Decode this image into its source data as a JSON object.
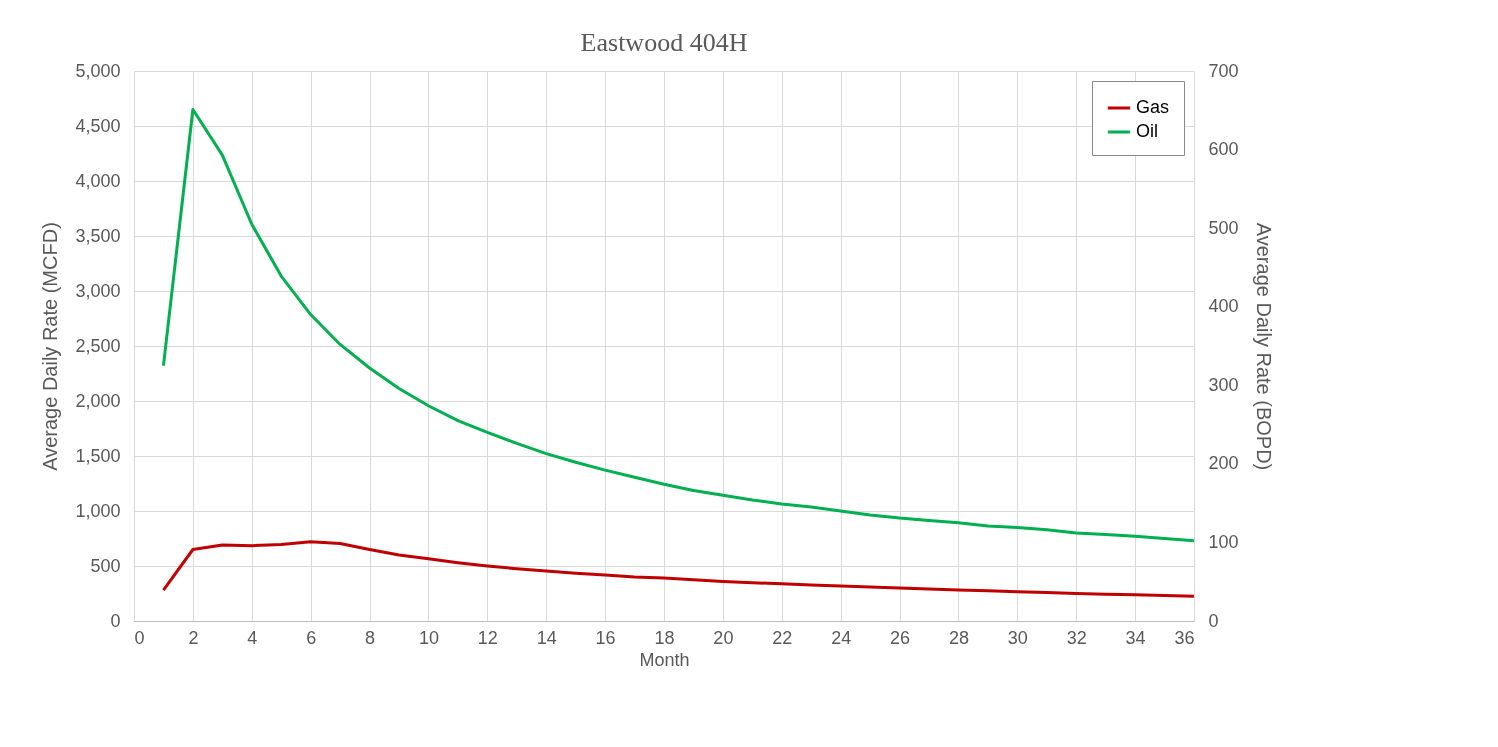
{
  "chart_data": {
    "type": "line",
    "title": "Eastwood 404H",
    "xlabel": "Month",
    "ylabel": "Average Daily Rate (MCFD)",
    "y2label": "Average Daily Rate (BOPD)",
    "x": [
      1,
      2,
      3,
      4,
      5,
      6,
      7,
      8,
      9,
      10,
      11,
      12,
      13,
      14,
      15,
      16,
      17,
      18,
      19,
      20,
      21,
      22,
      23,
      24,
      25,
      26,
      27,
      28,
      29,
      30,
      31,
      32,
      33,
      34,
      35,
      36
    ],
    "series": [
      {
        "name": "Gas",
        "color": "#c00000",
        "values": [
          280,
          650,
          690,
          685,
          695,
          720,
          705,
          650,
          600,
          565,
          530,
          500,
          475,
          455,
          435,
          418,
          400,
          390,
          375,
          360,
          348,
          338,
          328,
          318,
          308,
          300,
          290,
          282,
          274,
          266,
          258,
          250,
          244,
          238,
          232,
          225
        ]
      },
      {
        "name": "Oil",
        "color": "#00b050",
        "axis": "y2",
        "values": [
          325,
          651,
          593,
          505,
          439,
          390,
          352,
          322,
          296,
          274,
          255,
          240,
          226,
          213,
          202,
          192,
          183,
          174,
          166,
          160,
          154,
          149,
          145,
          140,
          135,
          131,
          128,
          125,
          121,
          119,
          116,
          112,
          110,
          108,
          105,
          102
        ]
      }
    ],
    "xlim": [
      0,
      36
    ],
    "xticks": [
      0,
      2,
      4,
      6,
      8,
      10,
      12,
      14,
      16,
      18,
      20,
      22,
      24,
      26,
      28,
      30,
      32,
      34,
      36
    ],
    "ylim": [
      0,
      5000
    ],
    "yticks": [
      0,
      500,
      {
        "value": 1000,
        "label": "1,000"
      },
      {
        "value": 1500,
        "label": "1,500"
      },
      {
        "value": 2000,
        "label": "2,000"
      },
      {
        "value": 2500,
        "label": "2,500"
      },
      {
        "value": 3000,
        "label": "3,000"
      },
      {
        "value": 3500,
        "label": "3,500"
      },
      {
        "value": 4000,
        "label": "4,000"
      },
      {
        "value": 4500,
        "label": "4,500"
      },
      {
        "value": 5000,
        "label": "5,000"
      }
    ],
    "y2lim": [
      0,
      700
    ],
    "y2ticks": [
      0,
      100,
      200,
      300,
      400,
      500,
      600,
      700
    ],
    "grid": true,
    "legend": "top right",
    "marker": "none",
    "line_style": "solid"
  }
}
